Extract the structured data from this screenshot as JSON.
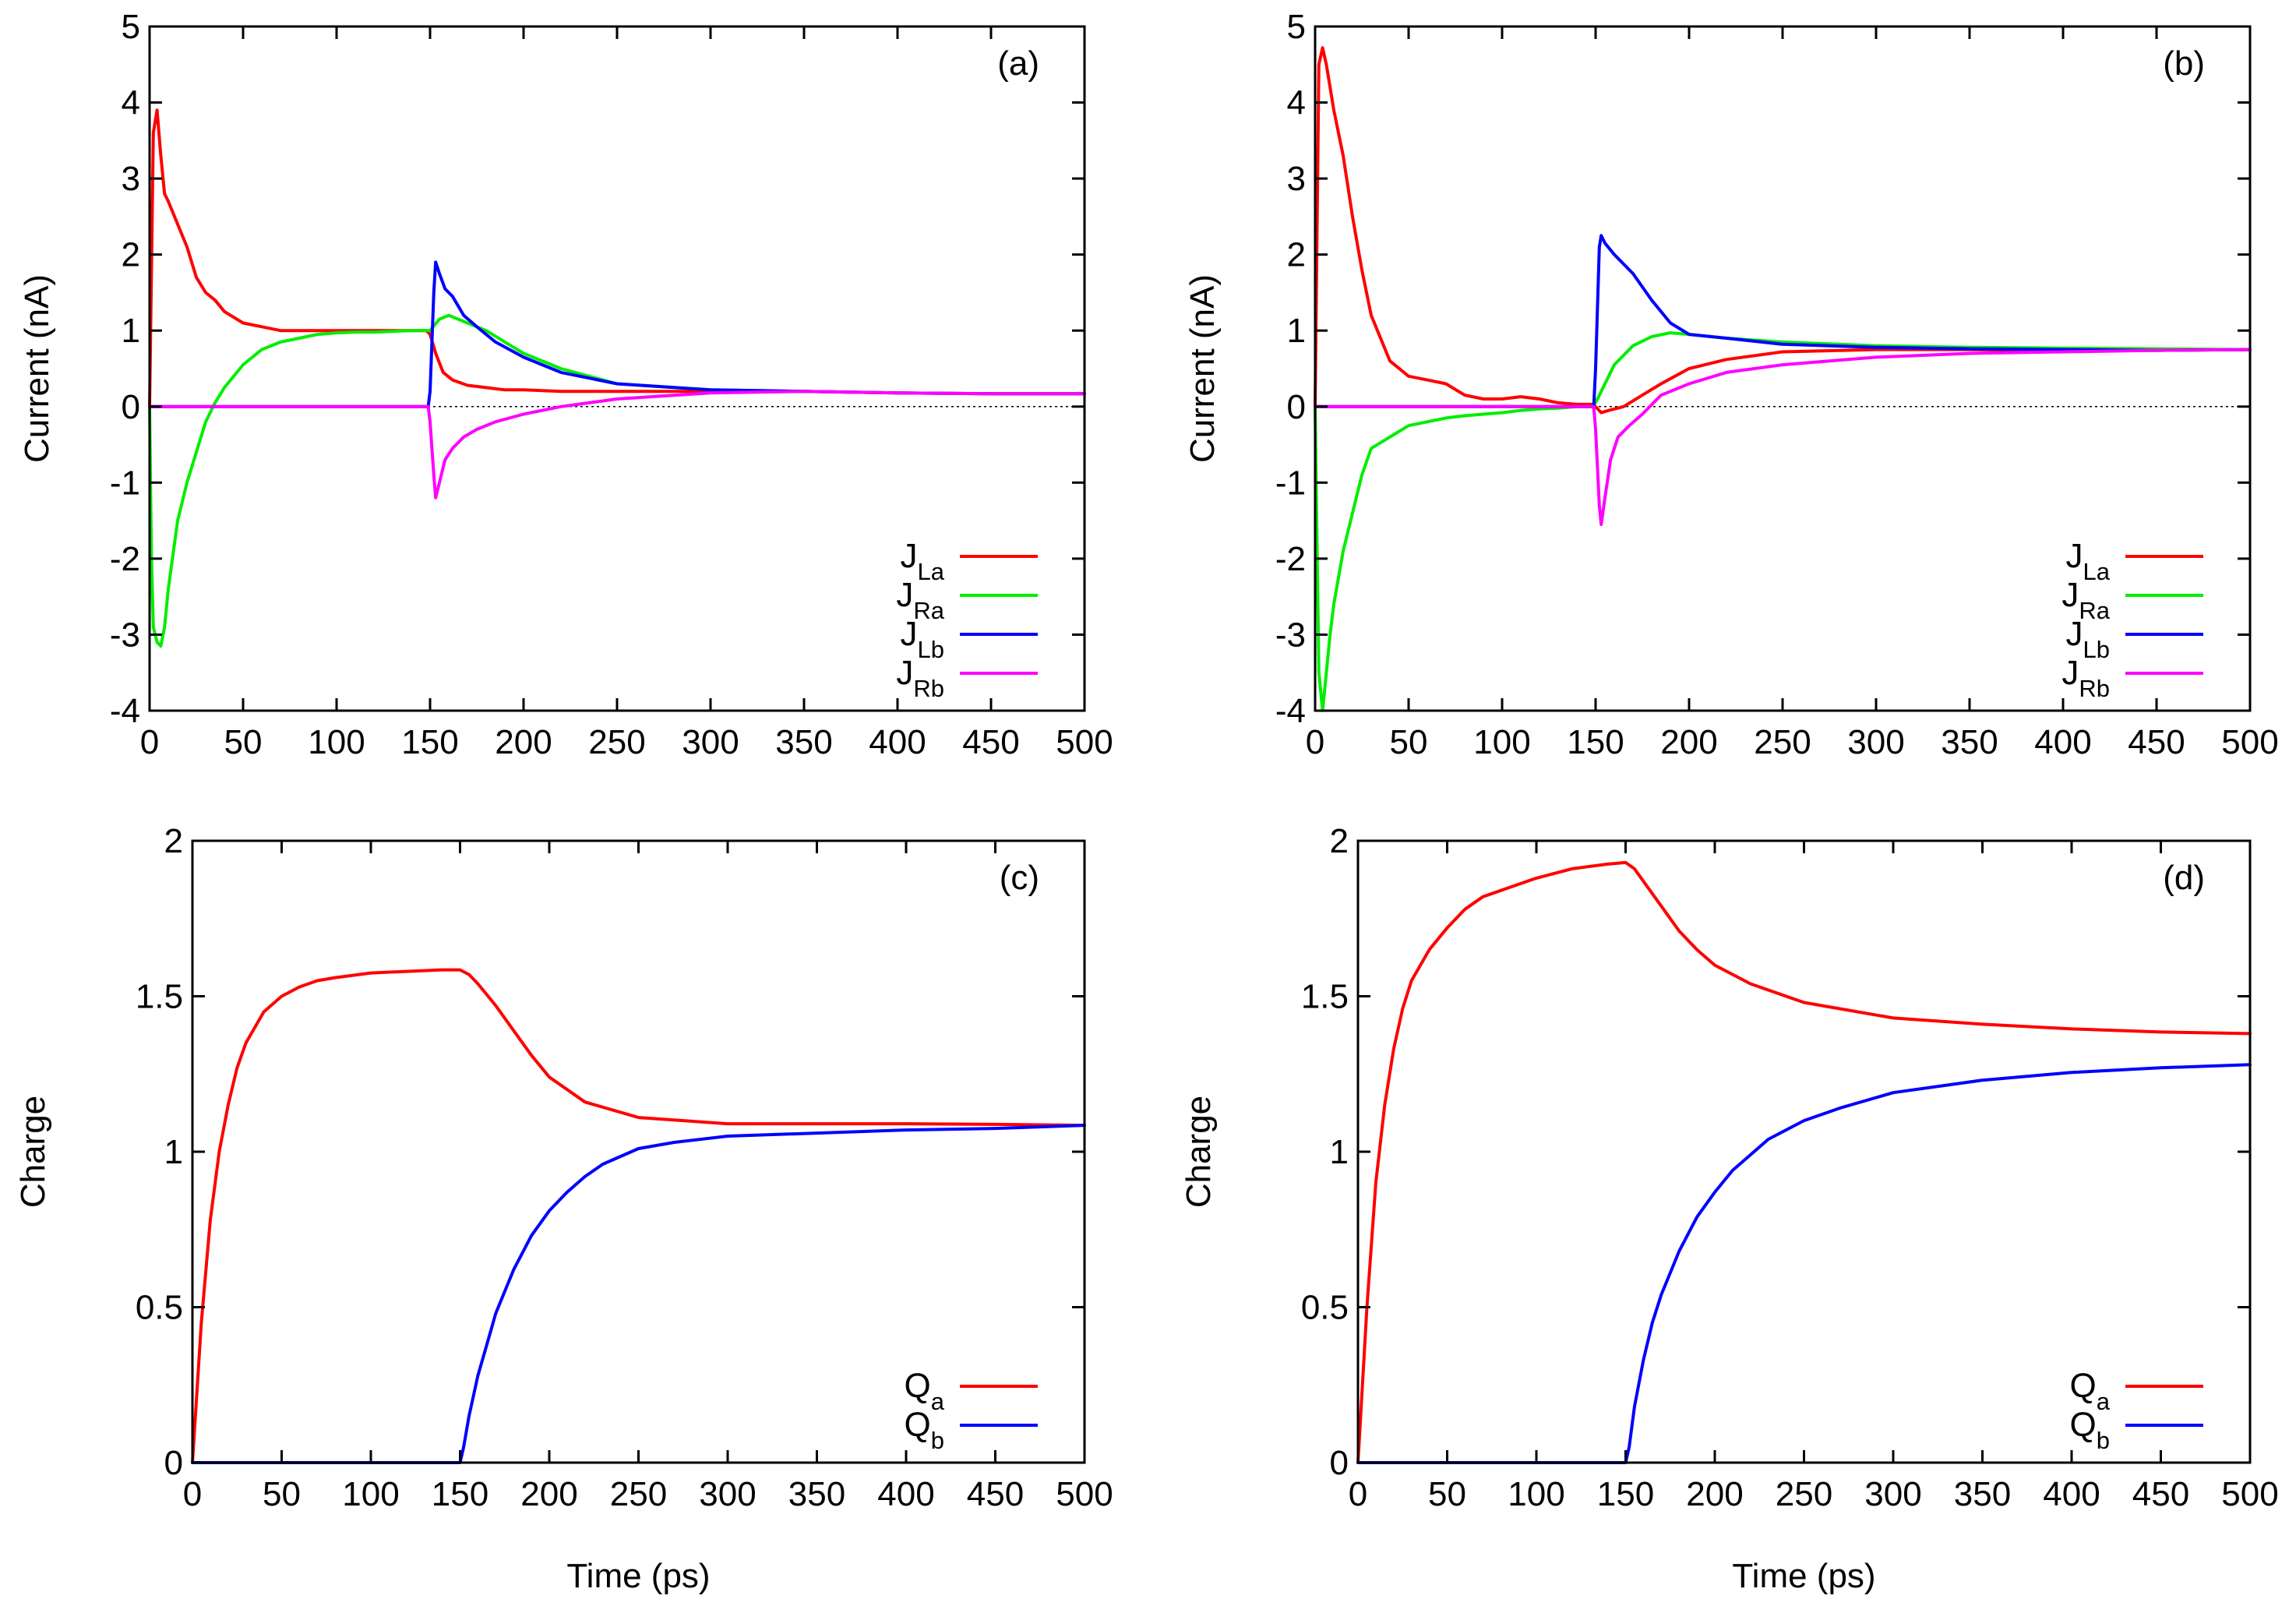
{
  "chart_data": [
    {
      "type": "line",
      "panel_label": "(a)",
      "title": "",
      "xlabel": "",
      "ylabel": "Current (nA)",
      "xlim": [
        0,
        500
      ],
      "ylim": [
        -4,
        5
      ],
      "xticks": [
        0,
        50,
        100,
        150,
        200,
        250,
        300,
        350,
        400,
        450,
        500
      ],
      "yticks": [
        -4,
        -3,
        -2,
        -1,
        0,
        1,
        2,
        3,
        4,
        5
      ],
      "zero_line": true,
      "legend_position": "bottom-right",
      "series": [
        {
          "name": "J_La",
          "main": "J",
          "sub": "La",
          "color": "#ff0000",
          "x": [
            0,
            2,
            4,
            6,
            8,
            10,
            15,
            20,
            25,
            30,
            35,
            40,
            50,
            60,
            70,
            80,
            90,
            100,
            110,
            120,
            130,
            140,
            148,
            150,
            153,
            157,
            162,
            170,
            180,
            190,
            200,
            220,
            250,
            300,
            350,
            400,
            450,
            500
          ],
          "y": [
            0,
            3.6,
            3.9,
            3.3,
            2.8,
            2.7,
            2.4,
            2.1,
            1.7,
            1.5,
            1.4,
            1.25,
            1.1,
            1.05,
            1.0,
            1.0,
            1.0,
            1.0,
            1.0,
            1.0,
            1.0,
            1.0,
            1.0,
            0.95,
            0.7,
            0.45,
            0.35,
            0.28,
            0.25,
            0.22,
            0.22,
            0.2,
            0.2,
            0.2,
            0.2,
            0.18,
            0.17,
            0.17
          ]
        },
        {
          "name": "J_Ra",
          "main": "J",
          "sub": "Ra",
          "color": "#00ee00",
          "x": [
            0,
            1,
            2,
            4,
            6,
            8,
            10,
            15,
            20,
            25,
            30,
            35,
            40,
            50,
            60,
            70,
            80,
            90,
            100,
            110,
            120,
            130,
            140,
            148,
            150,
            155,
            160,
            170,
            180,
            190,
            200,
            220,
            250,
            300,
            350,
            400,
            450,
            500
          ],
          "y": [
            0,
            -2.0,
            -2.9,
            -3.1,
            -3.15,
            -2.9,
            -2.4,
            -1.5,
            -1.0,
            -0.6,
            -0.2,
            0.05,
            0.25,
            0.55,
            0.75,
            0.85,
            0.9,
            0.95,
            0.97,
            0.98,
            0.98,
            0.99,
            1.0,
            1.0,
            1.0,
            1.15,
            1.2,
            1.1,
            1.0,
            0.85,
            0.7,
            0.5,
            0.3,
            0.22,
            0.2,
            0.18,
            0.17,
            0.17
          ]
        },
        {
          "name": "J_Lb",
          "main": "J",
          "sub": "Lb",
          "color": "#0000ff",
          "x": [
            0,
            149,
            150,
            152,
            153,
            155,
            158,
            162,
            168,
            175,
            185,
            200,
            220,
            250,
            300,
            350,
            400,
            450,
            500
          ],
          "y": [
            0,
            0,
            0.2,
            1.5,
            1.9,
            1.75,
            1.55,
            1.45,
            1.2,
            1.05,
            0.85,
            0.65,
            0.45,
            0.3,
            0.22,
            0.2,
            0.18,
            0.17,
            0.17
          ]
        },
        {
          "name": "J_Rb",
          "main": "J",
          "sub": "Rb",
          "color": "#ff00ff",
          "x": [
            0,
            149,
            150,
            152,
            153,
            155,
            158,
            162,
            168,
            175,
            185,
            200,
            220,
            250,
            300,
            350,
            400,
            450,
            500
          ],
          "y": [
            0,
            0,
            -0.2,
            -0.9,
            -1.2,
            -1.0,
            -0.7,
            -0.55,
            -0.4,
            -0.3,
            -0.2,
            -0.1,
            0.0,
            0.1,
            0.18,
            0.2,
            0.18,
            0.17,
            0.17
          ]
        }
      ]
    },
    {
      "type": "line",
      "panel_label": "(b)",
      "title": "",
      "xlabel": "",
      "ylabel": "Current (nA)",
      "xlim": [
        0,
        500
      ],
      "ylim": [
        -4,
        5
      ],
      "xticks": [
        0,
        50,
        100,
        150,
        200,
        250,
        300,
        350,
        400,
        450,
        500
      ],
      "yticks": [
        -4,
        -3,
        -2,
        -1,
        0,
        1,
        2,
        3,
        4,
        5
      ],
      "zero_line": true,
      "legend_position": "bottom-right",
      "series": [
        {
          "name": "J_La",
          "main": "J",
          "sub": "La",
          "color": "#ff0000",
          "x": [
            0,
            2,
            4,
            6,
            8,
            10,
            15,
            20,
            25,
            30,
            40,
            50,
            60,
            70,
            80,
            90,
            100,
            110,
            120,
            130,
            140,
            148,
            150,
            153,
            157,
            165,
            175,
            185,
            200,
            220,
            250,
            300,
            350,
            400,
            450,
            500
          ],
          "y": [
            0,
            4.5,
            4.72,
            4.5,
            4.2,
            3.9,
            3.3,
            2.5,
            1.8,
            1.2,
            0.6,
            0.4,
            0.35,
            0.3,
            0.15,
            0.1,
            0.1,
            0.13,
            0.1,
            0.05,
            0.03,
            0.03,
            0.0,
            -0.08,
            -0.05,
            0.0,
            0.15,
            0.3,
            0.5,
            0.62,
            0.72,
            0.75,
            0.75,
            0.74,
            0.74,
            0.75
          ]
        },
        {
          "name": "J_Ra",
          "main": "J",
          "sub": "Ra",
          "color": "#00ee00",
          "x": [
            0,
            2,
            4,
            6,
            8,
            10,
            15,
            20,
            25,
            30,
            40,
            50,
            60,
            70,
            80,
            90,
            100,
            110,
            120,
            130,
            140,
            148,
            150,
            155,
            160,
            170,
            180,
            190,
            200,
            220,
            250,
            300,
            350,
            400,
            450,
            500
          ],
          "y": [
            0,
            -3.5,
            -4.0,
            -3.5,
            -3.0,
            -2.6,
            -1.9,
            -1.4,
            -0.9,
            -0.55,
            -0.4,
            -0.25,
            -0.2,
            -0.15,
            -0.12,
            -0.1,
            -0.08,
            -0.05,
            -0.03,
            -0.02,
            0.0,
            0.0,
            0.05,
            0.3,
            0.55,
            0.8,
            0.92,
            0.97,
            0.95,
            0.9,
            0.85,
            0.8,
            0.78,
            0.77,
            0.76,
            0.75
          ]
        },
        {
          "name": "J_Lb",
          "main": "J",
          "sub": "Lb",
          "color": "#0000ff",
          "x": [
            0,
            149,
            150,
            152,
            153,
            155,
            160,
            170,
            180,
            190,
            200,
            220,
            250,
            300,
            350,
            400,
            450,
            500
          ],
          "y": [
            0,
            0,
            0.5,
            2.1,
            2.25,
            2.15,
            2.0,
            1.75,
            1.4,
            1.1,
            0.95,
            0.9,
            0.82,
            0.78,
            0.76,
            0.75,
            0.74,
            0.75
          ]
        },
        {
          "name": "J_Rb",
          "main": "J",
          "sub": "Rb",
          "color": "#ff00ff",
          "x": [
            0,
            149,
            150,
            152,
            153,
            155,
            158,
            162,
            168,
            175,
            185,
            200,
            220,
            250,
            300,
            350,
            400,
            450,
            500
          ],
          "y": [
            0,
            0,
            -0.3,
            -1.3,
            -1.55,
            -1.2,
            -0.7,
            -0.4,
            -0.25,
            -0.1,
            0.15,
            0.3,
            0.45,
            0.55,
            0.65,
            0.7,
            0.72,
            0.74,
            0.75
          ]
        }
      ]
    },
    {
      "type": "line",
      "panel_label": "(c)",
      "title": "",
      "xlabel": "Time (ps)",
      "ylabel": "Charge",
      "xlim": [
        0,
        500
      ],
      "ylim": [
        0,
        2
      ],
      "xticks": [
        0,
        50,
        100,
        150,
        200,
        250,
        300,
        350,
        400,
        450,
        500
      ],
      "yticks": [
        0,
        0.5,
        1,
        1.5,
        2
      ],
      "zero_line": false,
      "legend_position": "bottom-right",
      "series": [
        {
          "name": "Q_a",
          "main": "Q",
          "sub": "a",
          "color": "#ff0000",
          "x": [
            0,
            5,
            10,
            15,
            20,
            25,
            30,
            40,
            50,
            60,
            70,
            80,
            100,
            120,
            140,
            150,
            155,
            160,
            170,
            180,
            190,
            200,
            220,
            250,
            300,
            350,
            400,
            450,
            500
          ],
          "y": [
            0,
            0.45,
            0.78,
            1.0,
            1.15,
            1.27,
            1.35,
            1.45,
            1.5,
            1.53,
            1.55,
            1.56,
            1.575,
            1.58,
            1.585,
            1.585,
            1.57,
            1.54,
            1.47,
            1.39,
            1.31,
            1.24,
            1.16,
            1.11,
            1.09,
            1.09,
            1.09,
            1.088,
            1.085
          ]
        },
        {
          "name": "Q_b",
          "main": "Q",
          "sub": "b",
          "color": "#0000ff",
          "x": [
            0,
            150,
            152,
            155,
            160,
            165,
            170,
            180,
            190,
            200,
            210,
            220,
            230,
            250,
            270,
            300,
            350,
            400,
            450,
            500
          ],
          "y": [
            0,
            0,
            0.05,
            0.15,
            0.28,
            0.38,
            0.48,
            0.62,
            0.73,
            0.81,
            0.87,
            0.92,
            0.96,
            1.01,
            1.03,
            1.05,
            1.06,
            1.07,
            1.075,
            1.085
          ]
        }
      ]
    },
    {
      "type": "line",
      "panel_label": "(d)",
      "title": "",
      "xlabel": "Time (ps)",
      "ylabel": "Charge",
      "xlim": [
        0,
        500
      ],
      "ylim": [
        0,
        2
      ],
      "xticks": [
        0,
        50,
        100,
        150,
        200,
        250,
        300,
        350,
        400,
        450,
        500
      ],
      "yticks": [
        0,
        0.5,
        1,
        1.5,
        2
      ],
      "zero_line": false,
      "legend_position": "bottom-right",
      "series": [
        {
          "name": "Q_a",
          "main": "Q",
          "sub": "a",
          "color": "#ff0000",
          "x": [
            0,
            5,
            10,
            15,
            20,
            25,
            30,
            40,
            50,
            60,
            70,
            80,
            100,
            120,
            140,
            150,
            155,
            160,
            170,
            180,
            190,
            200,
            220,
            250,
            300,
            350,
            400,
            450,
            500
          ],
          "y": [
            0,
            0.5,
            0.9,
            1.15,
            1.33,
            1.46,
            1.55,
            1.65,
            1.72,
            1.78,
            1.82,
            1.84,
            1.88,
            1.91,
            1.925,
            1.93,
            1.91,
            1.87,
            1.79,
            1.71,
            1.65,
            1.6,
            1.54,
            1.48,
            1.43,
            1.41,
            1.395,
            1.385,
            1.38
          ]
        },
        {
          "name": "Q_b",
          "main": "Q",
          "sub": "b",
          "color": "#0000ff",
          "x": [
            0,
            150,
            152,
            155,
            160,
            165,
            170,
            180,
            190,
            200,
            210,
            220,
            230,
            250,
            270,
            300,
            350,
            400,
            450,
            500
          ],
          "y": [
            0,
            0,
            0.05,
            0.18,
            0.33,
            0.45,
            0.54,
            0.68,
            0.79,
            0.87,
            0.94,
            0.99,
            1.04,
            1.1,
            1.14,
            1.19,
            1.23,
            1.255,
            1.27,
            1.28
          ]
        }
      ]
    }
  ]
}
